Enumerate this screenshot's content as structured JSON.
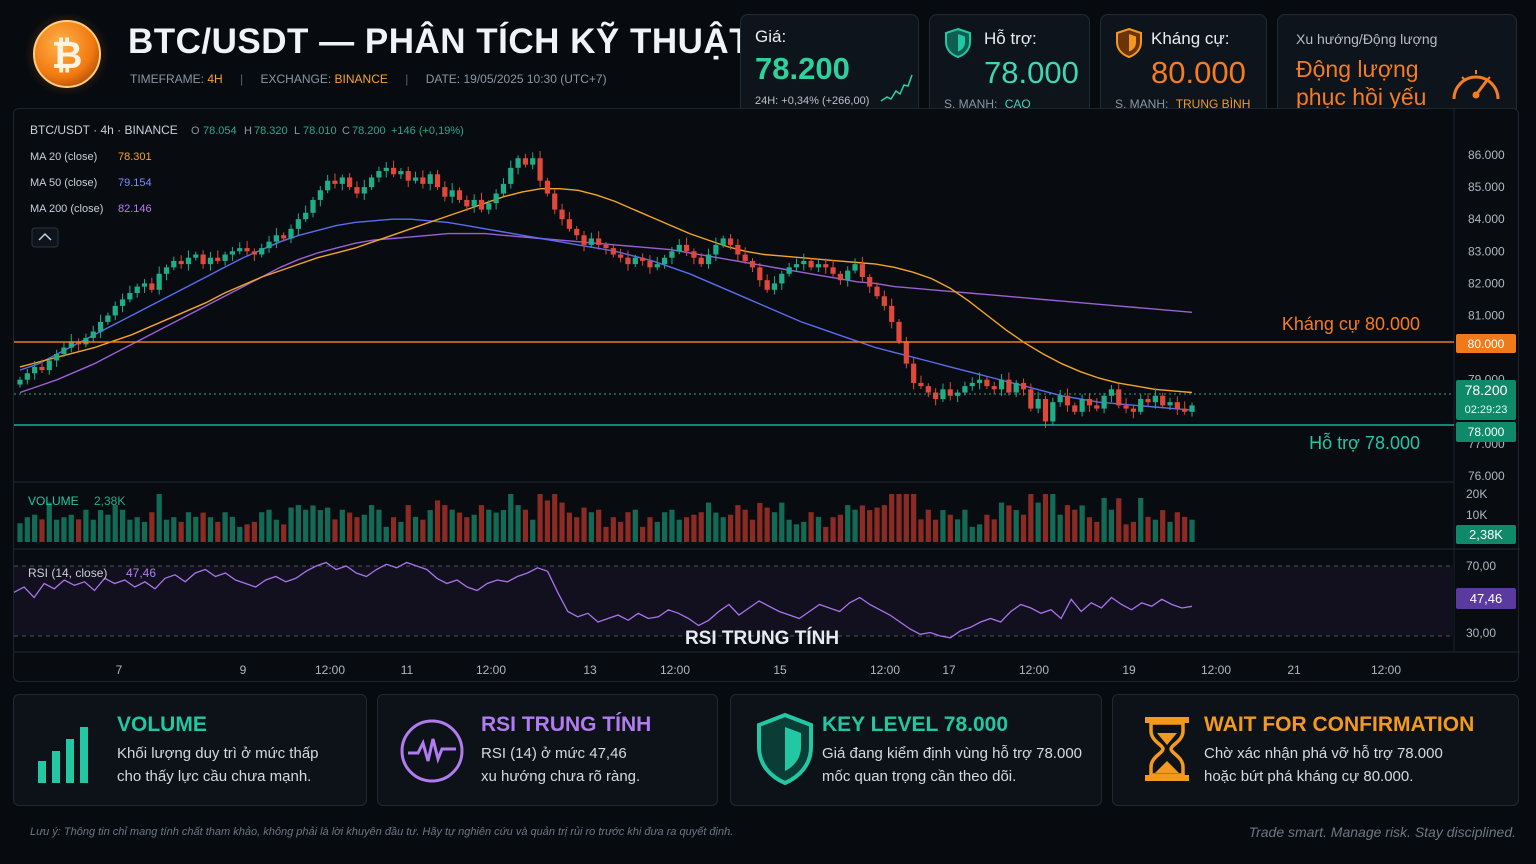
{
  "header": {
    "title": "BTC/USDT — PHÂN TÍCH KỸ THUẬT",
    "timeframe_label": "TIMEFRAME:",
    "timeframe_value": "4H",
    "exchange_label": "EXCHANGE:",
    "exchange_value": "BINANCE",
    "date_label": "DATE:",
    "date_value": "19/05/2025 10:30 (UTC+7)"
  },
  "cards": {
    "price": {
      "label": "Giá:",
      "value": "78.200",
      "change": "24H: +0,34% (+266,00)"
    },
    "support": {
      "label": "Hỗ trợ:",
      "value": "78.000",
      "strength_label": "S. MẠNH:",
      "strength_value": "CAO"
    },
    "resistance": {
      "label": "Kháng cự:",
      "value": "80.000",
      "strength_label": "S. MẠNH:",
      "strength_value": "TRUNG BÌNH"
    },
    "trend": {
      "label": "Xu hướng/Động lượng",
      "value_line1": "Động lượng",
      "value_line2": "phục hồi yếu"
    }
  },
  "chart_legend": {
    "symbol": "BTC/USDT · 4h · BINANCE",
    "ohlc": {
      "o_label": "O",
      "o": "78.054",
      "h_label": "H",
      "h": "78.320",
      "l_label": "L",
      "l": "78.010",
      "c_label": "C",
      "c": "78.200",
      "chg": "+146 (+0,19%)"
    },
    "ma20_label": "MA 20 (close)",
    "ma20_value": "78.301",
    "ma50_label": "MA 50 (close)",
    "ma50_value": "79.154",
    "ma200_label": "MA 200 (close)",
    "ma200_value": "82.146",
    "collapse_icon": "chevron-up-icon"
  },
  "chart_data": {
    "type": "candlestick",
    "price_axis": {
      "ticks": [
        "86.000",
        "85.000",
        "84.000",
        "83.000",
        "82.000",
        "81.000",
        "79.000",
        "77.000",
        "76.000"
      ],
      "ylim": [
        76000,
        86000
      ]
    },
    "time_axis": {
      "ticks": [
        "7",
        "9",
        "12:00",
        "11",
        "12:00",
        "13",
        "12:00",
        "15",
        "12:00",
        "17",
        "12:00",
        "19",
        "12:00",
        "21",
        "12:00"
      ]
    },
    "levels": {
      "resistance": {
        "label": "Kháng cự  80.000",
        "value": 80000,
        "tag": "80.000",
        "color": "#f07a1a"
      },
      "support": {
        "label": "Hỗ trợ  78.000",
        "value": 78000,
        "tag": "78.000",
        "color": "#18b29a"
      },
      "last_price": {
        "value": 78200,
        "tag": "78.200",
        "countdown": "02:29:23",
        "color": "#0e8a6a"
      }
    },
    "close_series": [
      79000,
      79200,
      79400,
      79300,
      79600,
      79800,
      80000,
      80200,
      80100,
      80300,
      80500,
      80800,
      81000,
      81300,
      81500,
      81700,
      81900,
      82000,
      81800,
      82300,
      82500,
      82700,
      82600,
      82800,
      82900,
      82600,
      82800,
      82700,
      82900,
      83000,
      83100,
      83000,
      82900,
      83100,
      83300,
      83500,
      83400,
      83700,
      84000,
      84200,
      84600,
      84900,
      85200,
      85100,
      85300,
      85000,
      84800,
      85000,
      85300,
      85500,
      85600,
      85400,
      85500,
      85200,
      85300,
      85100,
      85400,
      85000,
      84700,
      84900,
      84600,
      84400,
      84600,
      84300,
      84500,
      84800,
      85100,
      85600,
      85900,
      85700,
      85900,
      85200,
      84800,
      84300,
      84000,
      83700,
      83500,
      83200,
      83400,
      83200,
      83100,
      82900,
      82800,
      82600,
      82800,
      82700,
      82500,
      82600,
      82800,
      83000,
      83200,
      83000,
      82800,
      82600,
      82900,
      83200,
      83400,
      83200,
      82900,
      82700,
      82500,
      82100,
      81800,
      82000,
      82300,
      82500,
      82600,
      82700,
      82500,
      82600,
      82500,
      82300,
      82100,
      82400,
      82600,
      82200,
      81900,
      81600,
      81300,
      80800,
      80200,
      79500,
      78900,
      78800,
      78600,
      78400,
      78700,
      78500,
      78600,
      78800,
      78900,
      79000,
      78800,
      78700,
      79000,
      78600,
      78900,
      78700,
      78100,
      78400,
      77700,
      78300,
      78500,
      78200,
      78000,
      78400,
      78200,
      78100,
      78500,
      78700,
      78200,
      78100,
      78000,
      78400,
      78300,
      78500,
      78200,
      78300,
      78100,
      78000,
      78200
    ],
    "ma20_series": [
      79400,
      79550,
      79700,
      79850,
      80000,
      80200,
      80400,
      80650,
      80900,
      81150,
      81400,
      81700,
      81950,
      82200,
      82400,
      82600,
      82800,
      82950,
      83100,
      83300,
      83500,
      83700,
      83900,
      84100,
      84300,
      84500,
      84700,
      84850,
      84950,
      84950,
      84900,
      84750,
      84550,
      84300,
      84050,
      83800,
      83550,
      83350,
      83150,
      83000,
      82900,
      82850,
      82800,
      82750,
      82700,
      82650,
      82600,
      82500,
      82350,
      82150,
      81850,
      81450,
      81000,
      80550,
      80150,
      79800,
      79500,
      79250,
      79050,
      78900,
      78800,
      78700,
      78650,
      78600
    ],
    "ma50_series": [
      79300,
      79500,
      79800,
      80100,
      80400,
      80700,
      81000,
      81300,
      81600,
      81900,
      82200,
      82500,
      82800,
      83050,
      83300,
      83500,
      83650,
      83800,
      83900,
      83950,
      84000,
      84000,
      83950,
      83900,
      83800,
      83700,
      83600,
      83500,
      83400,
      83300,
      83200,
      83100,
      83000,
      82850,
      82700,
      82500,
      82300,
      82050,
      81800,
      81550,
      81300,
      81050,
      80800,
      80600,
      80400,
      80200,
      80000,
      79850,
      79700,
      79550,
      79400,
      79250,
      79100,
      78950,
      78800,
      78650,
      78500,
      78400,
      78300,
      78250,
      78200,
      78150,
      78100,
      78050
    ],
    "ma200_series": [
      78600,
      78800,
      79000,
      79250,
      79500,
      79800,
      80100,
      80400,
      80700,
      81000,
      81300,
      81600,
      81900,
      82200,
      82500,
      82750,
      82950,
      83100,
      83250,
      83350,
      83400,
      83450,
      83500,
      83550,
      83550,
      83550,
      83500,
      83450,
      83400,
      83350,
      83300,
      83250,
      83200,
      83150,
      83100,
      83050,
      82950,
      82850,
      82750,
      82650,
      82550,
      82450,
      82350,
      82250,
      82150,
      82050,
      82000,
      81900,
      81850,
      81800,
      81750,
      81700,
      81650,
      81600,
      81550,
      81500,
      81450,
      81400,
      81350,
      81300,
      81250,
      81200,
      81150,
      81100
    ],
    "volume": {
      "label": "VOLUME",
      "value": "2,38K",
      "ticks": [
        "20K",
        "10K"
      ],
      "tag": "2,38K"
    },
    "rsi": {
      "label": "RSI (14, close)",
      "value": "47,46",
      "ticks": [
        "70,00",
        "30,00"
      ],
      "tag": "47,46",
      "caption": "RSI TRUNG TÍNH",
      "series": [
        55,
        58,
        52,
        60,
        57,
        62,
        59,
        61,
        56,
        63,
        60,
        62,
        58,
        61,
        57,
        63,
        65,
        61,
        66,
        68,
        64,
        66,
        62,
        60,
        58,
        62,
        64,
        61,
        63,
        67,
        70,
        72,
        68,
        70,
        66,
        64,
        68,
        71,
        69,
        72,
        70,
        68,
        63,
        60,
        62,
        58,
        56,
        60,
        62,
        61,
        64,
        66,
        69,
        67,
        55,
        44,
        41,
        43,
        38,
        40,
        42,
        39,
        43,
        40,
        41,
        45,
        43,
        40,
        36,
        39,
        44,
        48,
        42,
        46,
        50,
        47,
        44,
        42,
        40,
        44,
        48,
        46,
        44,
        49,
        52,
        48,
        45,
        42,
        38,
        34,
        31,
        32,
        30,
        29,
        33,
        35,
        38,
        40,
        38,
        44,
        48,
        46,
        43,
        45,
        40,
        51,
        44,
        49,
        46,
        52,
        48,
        45,
        49,
        47,
        51,
        48,
        46,
        47
      ]
    }
  },
  "bottom_cards": [
    {
      "icon": "bar-chart-icon",
      "title": "VOLUME",
      "line1": "Khối lượng duy trì ở mức thấp",
      "line2": "cho thấy lực cầu chưa mạnh.",
      "color": "#22c7a4"
    },
    {
      "icon": "pulse-icon",
      "title": "RSI TRUNG TÍNH",
      "line1": "RSI (14) ở mức 47,46",
      "line2": "xu hướng chưa rõ ràng.",
      "color": "#b17cf0"
    },
    {
      "icon": "shield-icon",
      "title": "KEY LEVEL 78.000",
      "line1": "Giá đang kiểm định vùng hỗ trợ 78.000",
      "line2": "mốc quan trọng cần theo dõi.",
      "color": "#22c7a4"
    },
    {
      "icon": "hourglass-icon",
      "title": "WAIT FOR CONFIRMATION",
      "line1": "Chờ xác nhận phá vỡ hỗ trợ 78.000",
      "line2": "hoặc bứt phá kháng cự 80.000.",
      "color": "#f39a1e"
    }
  ],
  "footer": {
    "note": "Lưu ý: Thông tin chỉ mang tính chất tham khảo, không phải là lời khuyên đầu tư. Hãy tự nghiên cứu và quản trị rủi ro trước khi đưa ra quyết định.",
    "tagline": "Trade smart. Manage risk. Stay disciplined."
  },
  "colors": {
    "up": "#1fae88",
    "down": "#e0483a",
    "ma20": "#f5a524",
    "ma50": "#5a6cf0",
    "ma200": "#9b5fd6",
    "accent_green": "#22c7a4",
    "accent_orange": "#f39a1e"
  }
}
